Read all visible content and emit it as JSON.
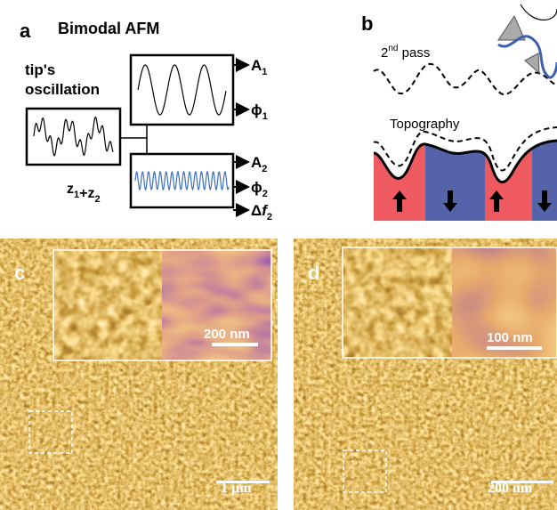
{
  "panel_a": {
    "label": "a",
    "title": "Bimodal AFM",
    "input_label": [
      "tip's",
      "oscillation"
    ],
    "input_signal": [
      {
        "base": "z",
        "sub": "1"
      },
      {
        "base": "+"
      },
      {
        "base": "z",
        "sub": "2"
      }
    ],
    "outputs": [
      {
        "base": "A",
        "sub": "1"
      },
      {
        "base": "ϕ",
        "sub": "1"
      },
      {
        "base": "A",
        "sub": "2"
      },
      {
        "base": "ϕ",
        "sub": "2"
      },
      {
        "base": "Δ",
        "italic": "f",
        "sub": "2"
      }
    ]
  },
  "panel_b": {
    "label": "b",
    "second_pass": {
      "base": "2",
      "sup": "nd",
      "rest": " pass"
    },
    "topography": "Topography"
  },
  "panel_c": {
    "label": "c",
    "inset_scale": "200 nm",
    "scale": "1 µm"
  },
  "panel_d": {
    "label": "d",
    "inset_scale": "100 nm",
    "scale": "200 nm"
  }
}
